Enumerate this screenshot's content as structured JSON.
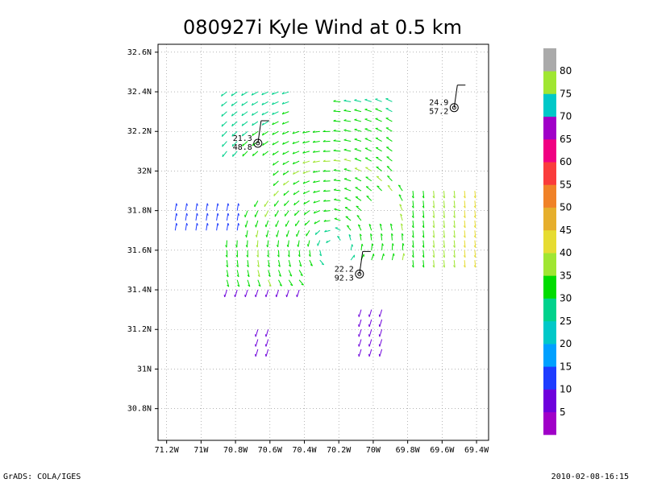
{
  "chart_data": {
    "type": "vector-map",
    "title": "080927i Kyle Wind at 0.5 km",
    "x_ticks": [
      "71.2W",
      "71W",
      "70.8W",
      "70.6W",
      "70.4W",
      "70.2W",
      "70W",
      "69.8W",
      "69.6W",
      "69.4W"
    ],
    "y_ticks": [
      "32.6N",
      "32.4N",
      "32.2N",
      "32N",
      "31.8N",
      "31.6N",
      "31.4N",
      "31.2N",
      "31N",
      "30.8N"
    ],
    "xlim": [
      -71.25,
      -69.33
    ],
    "ylim": [
      30.64,
      32.64
    ],
    "grid": true,
    "colorbar": {
      "labels": [
        "5",
        "10",
        "15",
        "20",
        "25",
        "30",
        "35",
        "40",
        "45",
        "50",
        "55",
        "60",
        "65",
        "70",
        "75",
        "80"
      ],
      "colors": [
        "#a000c8",
        "#6e00dc",
        "#1e3cff",
        "#00a0ff",
        "#00c8c8",
        "#00d28c",
        "#00dc00",
        "#a0e632",
        "#e6dc32",
        "#e6af2d",
        "#f08228",
        "#fa3c3c",
        "#f00082",
        "#a000c8",
        "#00c8c8",
        "#a0e632",
        "#aaaaaa"
      ]
    },
    "observations": [
      {
        "lon": -70.67,
        "lat": 32.14,
        "val1": "21.3",
        "val2": "48.8"
      },
      {
        "lon": -69.53,
        "lat": 32.32,
        "val1": "24.9",
        "val2": "57.2"
      },
      {
        "lon": -70.08,
        "lat": 31.48,
        "val1": "22.2",
        "val2": "92.3"
      }
    ]
  },
  "footer": {
    "left": "GrADS: COLA/IGES",
    "right": "2010-02-08-16:15"
  }
}
